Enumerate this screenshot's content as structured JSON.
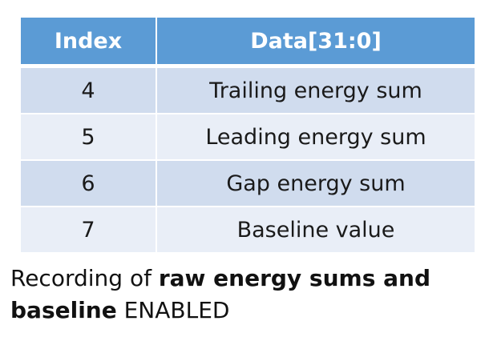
{
  "table": {
    "headers": [
      "Index",
      "Data[31:0]"
    ],
    "rows": [
      {
        "index": "4",
        "data": "Trailing energy sum"
      },
      {
        "index": "5",
        "data": "Leading energy sum"
      },
      {
        "index": "6",
        "data": "Gap energy sum"
      },
      {
        "index": "7",
        "data": "Baseline value"
      }
    ]
  },
  "caption": {
    "prefix": "Recording of ",
    "bold": "raw energy sums and baseline",
    "suffix": " ENABLED"
  },
  "colors": {
    "header_background": "#5b9bd5",
    "row_dark": "#d0dcee",
    "row_light": "#e9eef7"
  }
}
